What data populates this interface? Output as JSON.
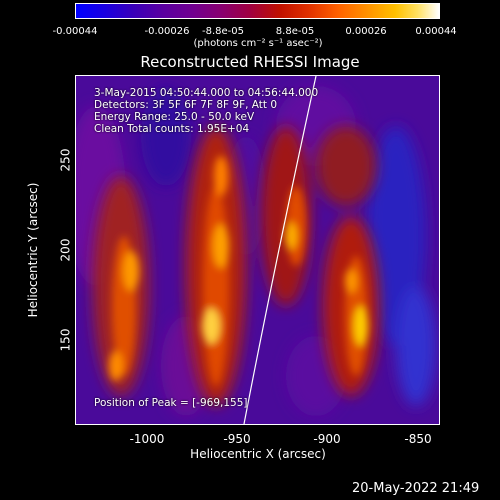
{
  "colorbar": {
    "ticks": [
      "-0.00044",
      "-0.00026",
      "-8.8e-05",
      "8.8e-05",
      "0.00026",
      "0.00044"
    ],
    "units": "(photons cm⁻² s⁻¹ asec⁻²)"
  },
  "title": "Reconstructed RHESSI Image",
  "info": {
    "time": "3-May-2015 04:50:44.000 to 04:56:44.000",
    "detectors": "Detectors: 3F 5F 6F 7F 8F 9F, Att 0",
    "energy": "Energy Range: 25.0 - 50.0 keV",
    "method": "Clean     Total counts: 1.95E+04",
    "peak": "Position of Peak = [-969,155]"
  },
  "axes": {
    "xlabel": "Heliocentric X (arcsec)",
    "ylabel": "Heliocentric Y (arcsec)",
    "xticks": [
      "-1000",
      "-950",
      "-900",
      "-850"
    ],
    "yticks": [
      "150",
      "200",
      "250"
    ]
  },
  "footer": "20-May-2022 21:49",
  "colors": {
    "background": "#000000",
    "foreground": "#ffffff"
  }
}
